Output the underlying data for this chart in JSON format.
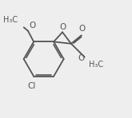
{
  "bg_color": "#eeeeee",
  "line_color": "#555555",
  "line_width": 1.3,
  "font_size": 7.0,
  "figsize": [
    1.65,
    1.48
  ],
  "dpi": 100,
  "xlim": [
    0,
    10
  ],
  "ylim": [
    0,
    9
  ]
}
